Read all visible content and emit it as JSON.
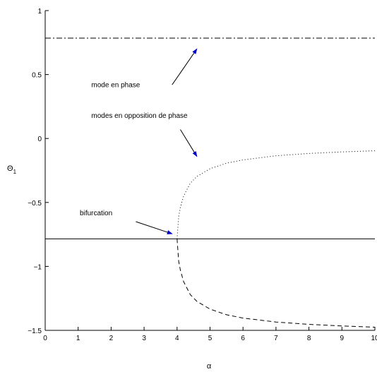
{
  "chart_data": {
    "type": "line",
    "title": "",
    "xlabel": "α",
    "ylabel": "Θ",
    "ylabel_subscript": "1",
    "xlim": [
      0,
      10
    ],
    "ylim": [
      -1.5,
      1
    ],
    "xticks": [
      0,
      1,
      2,
      3,
      4,
      5,
      6,
      7,
      8,
      9,
      10
    ],
    "xtick_labels": [
      "0",
      "1",
      "2",
      "3",
      "4",
      "5",
      "6",
      "7",
      "8",
      "9",
      "10"
    ],
    "yticks": [
      -1.5,
      -1,
      -0.5,
      0,
      0.5,
      1
    ],
    "ytick_labels": [
      "−1.5",
      "−1",
      "−0.5",
      "0",
      "0.5",
      "1"
    ],
    "grid": false,
    "series": [
      {
        "style": "dashdot",
        "color": "#000000",
        "x": [
          0,
          10
        ],
        "y": [
          0.785,
          0.785
        ]
      },
      {
        "style": "solid",
        "color": "#000000",
        "x": [
          0,
          10
        ],
        "y": [
          -0.785,
          -0.785
        ]
      },
      {
        "style": "dotted",
        "color": "#000000",
        "x": [
          4.0,
          4.05,
          4.1,
          4.2,
          4.4,
          4.6,
          5.0,
          5.5,
          6.0,
          7.0,
          8.0,
          9.0,
          10.0
        ],
        "y": [
          -0.785,
          -0.61,
          -0.54,
          -0.45,
          -0.35,
          -0.297,
          -0.236,
          -0.193,
          -0.167,
          -0.135,
          -0.117,
          -0.105,
          -0.096
        ]
      },
      {
        "style": "dashed",
        "color": "#000000",
        "x": [
          4.0,
          4.05,
          4.1,
          4.2,
          4.4,
          4.6,
          5.0,
          5.5,
          6.0,
          7.0,
          8.0,
          9.0,
          10.0
        ],
        "y": [
          -0.785,
          -0.96,
          -1.03,
          -1.12,
          -1.22,
          -1.273,
          -1.334,
          -1.378,
          -1.404,
          -1.435,
          -1.453,
          -1.466,
          -1.475
        ]
      }
    ],
    "annotations": [
      {
        "text": "mode en phase",
        "text_at": [
          1.4,
          0.4
        ],
        "arrow_from": [
          3.85,
          0.42
        ],
        "arrow_to": [
          4.6,
          0.7
        ],
        "arrow_color": "#0000cc"
      },
      {
        "text": "modes en opposition de phase",
        "text_at": [
          1.4,
          0.16
        ],
        "arrow_from": [
          4.1,
          0.07
        ],
        "arrow_to": [
          4.6,
          -0.14
        ],
        "arrow_color": "#0000cc"
      },
      {
        "text": "bifurcation",
        "text_at": [
          1.05,
          -0.6
        ],
        "arrow_from": [
          2.75,
          -0.65
        ],
        "arrow_to": [
          3.85,
          -0.745
        ],
        "arrow_color": "#0000cc"
      }
    ]
  }
}
